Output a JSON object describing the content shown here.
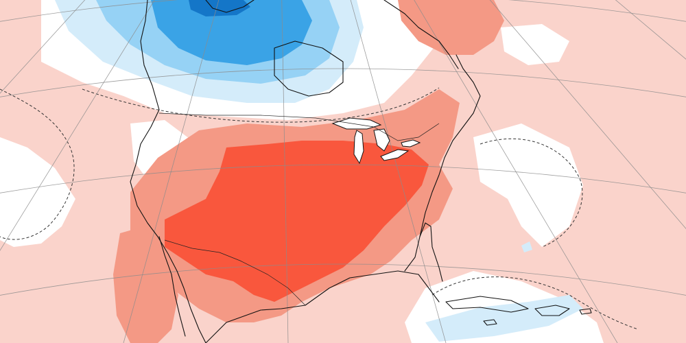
{
  "map": {
    "type": "temperature-anomaly-map",
    "projection": "polar-stereographic",
    "region": "North America",
    "palette": {
      "strong_warm": "#f9573d",
      "moderate_warm": "#f49985",
      "light_warm": "#fad3cb",
      "neutral": "#ffffff",
      "light_cool": "#d4ecfa",
      "moderate_cool": "#96d2f5",
      "strong_cool": "#3aa3e6",
      "very_strong_cool": "#1476c8",
      "coastline": "#111111",
      "graticule": "#8c8c8c",
      "zero_contour": "#333333"
    },
    "features": {
      "graticule": true,
      "coastlines": true,
      "political_borders": true,
      "zero_contour_dashed": true
    }
  }
}
